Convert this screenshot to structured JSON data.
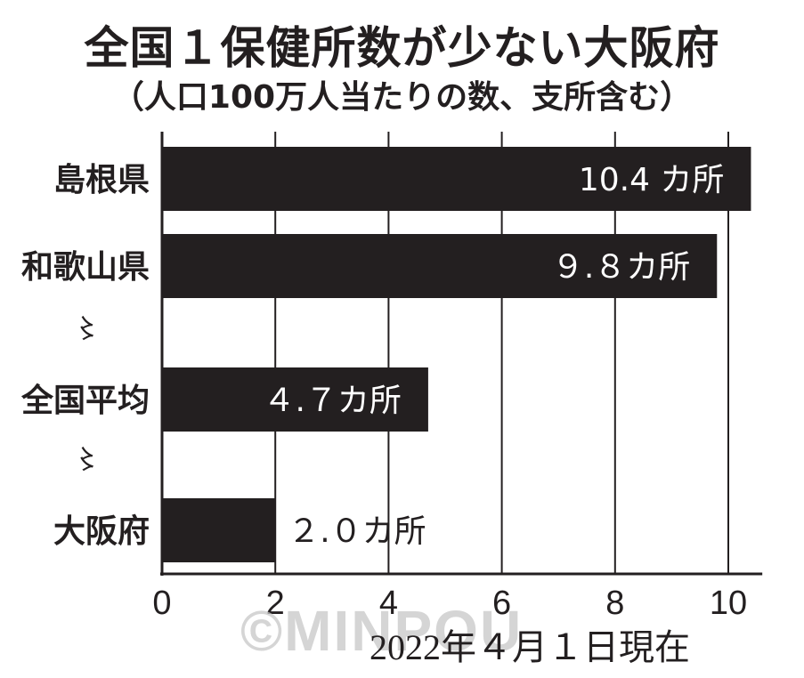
{
  "title": "全国１保健所数が少ない大阪府",
  "subtitle": "（人口100万人当たりの数、支所含む）",
  "note": "2022年４月１日現在",
  "watermark": "©MINPOU",
  "omission_mark": "〻",
  "chart_data": {
    "type": "bar",
    "orientation": "horizontal",
    "categories": [
      "島根県",
      "和歌山県",
      "全国平均",
      "大阪府"
    ],
    "values": [
      10.4,
      9.8,
      4.7,
      2.0
    ],
    "value_labels": [
      "10.4 カ所",
      "９.８カ所",
      "４.７カ所",
      "２.０カ所"
    ],
    "xlim": [
      0,
      10.6
    ],
    "xticks": [
      0,
      2,
      4,
      6,
      8,
      10
    ],
    "grid": true,
    "bar_color": "#231f20"
  }
}
